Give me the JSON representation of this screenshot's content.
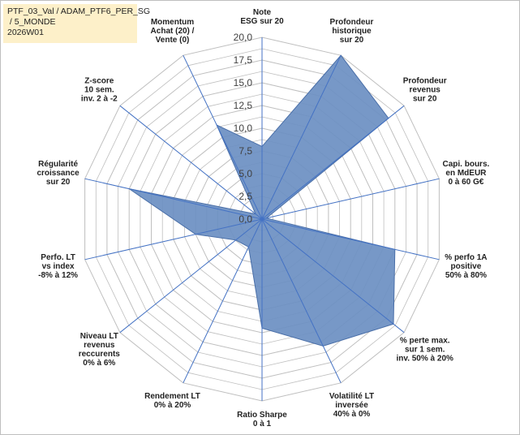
{
  "title_box": {
    "line1": "PTF_03_Val / ADAM_PTF6_PER_SG",
    "line2": " / 5_MONDE",
    "line3": "2026W01"
  },
  "chart_data": {
    "type": "radar",
    "r_range": [
      0,
      20
    ],
    "r_ticks": [
      "0,0",
      "2,5",
      "5,0",
      "7,5",
      "10,0",
      "12,5",
      "15,0",
      "17,5",
      "20,0"
    ],
    "grid": true,
    "colors": {
      "fill": "#6b8fc2",
      "stroke": "#4a6fa8",
      "grid": "#bfbfbf",
      "spoke": "#4472c4"
    },
    "axes": [
      {
        "lines": [
          "Note",
          "ESG sur 20"
        ]
      },
      {
        "lines": [
          "Profondeur",
          "historique",
          "sur 20"
        ]
      },
      {
        "lines": [
          "Profondeur",
          "revenus",
          "sur 20"
        ]
      },
      {
        "lines": [
          "Capi. bours.",
          "en MdEUR",
          "0 à 60 G€"
        ]
      },
      {
        "lines": [
          "% perfo 1A",
          "positive",
          "50% à 80%"
        ]
      },
      {
        "lines": [
          "% perte max.",
          "sur 1 sem.",
          "inv. 50% à 20%"
        ]
      },
      {
        "lines": [
          "Volatilité LT",
          "inversée",
          "40% à 0%"
        ]
      },
      {
        "lines": [
          "Ratio Sharpe",
          "0 à 1"
        ]
      },
      {
        "lines": [
          "Rendement LT",
          "0% à 20%"
        ]
      },
      {
        "lines": [
          "Niveau LT",
          "revenus",
          "reccurents",
          "0% à 6%"
        ]
      },
      {
        "lines": [
          "Perfo. LT",
          "vs index",
          "-8% à 12%"
        ]
      },
      {
        "lines": [
          "Régularité",
          "croissance",
          "sur 20"
        ]
      },
      {
        "lines": [
          "Z-score",
          "10 sem.",
          "inv. 2 à -2"
        ]
      },
      {
        "lines": [
          "Momentum",
          "Achat (20) /",
          "Vente (0)"
        ]
      }
    ],
    "values": [
      8,
      20,
      17.8,
      0.5,
      15,
      18.5,
      15.5,
      12,
      3.4,
      3.7,
      7.5,
      15,
      0.9,
      11.5
    ]
  }
}
